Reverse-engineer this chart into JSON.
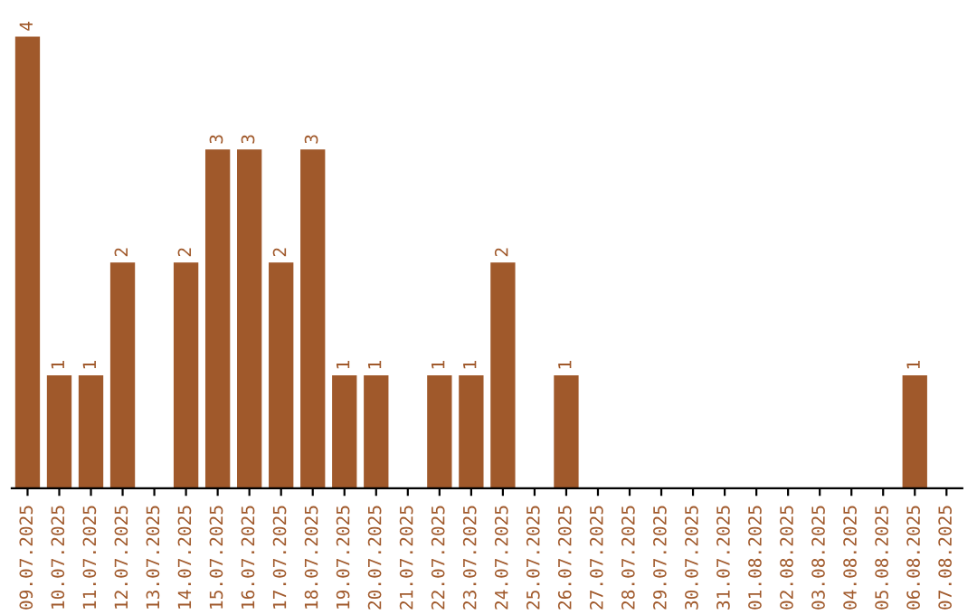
{
  "chart_data": {
    "type": "bar",
    "categories": [
      "09.07.2025",
      "10.07.2025",
      "11.07.2025",
      "12.07.2025",
      "13.07.2025",
      "14.07.2025",
      "15.07.2025",
      "16.07.2025",
      "17.07.2025",
      "18.07.2025",
      "19.07.2025",
      "20.07.2025",
      "21.07.2025",
      "22.07.2025",
      "23.07.2025",
      "24.07.2025",
      "25.07.2025",
      "26.07.2025",
      "27.07.2025",
      "28.07.2025",
      "29.07.2025",
      "30.07.2025",
      "31.07.2025",
      "01.08.2025",
      "02.08.2025",
      "03.08.2025",
      "04.08.2025",
      "05.08.2025",
      "06.08.2025",
      "07.08.2025"
    ],
    "values": [
      4,
      1,
      1,
      2,
      0,
      2,
      3,
      3,
      2,
      3,
      1,
      1,
      0,
      1,
      1,
      2,
      0,
      1,
      0,
      0,
      0,
      0,
      0,
      0,
      0,
      0,
      0,
      0,
      1,
      0
    ],
    "value_labels": [
      "4",
      "1",
      "1",
      "2",
      null,
      "2",
      "3",
      "3",
      "2",
      "3",
      "1",
      "1",
      null,
      "1",
      "1",
      "2",
      null,
      "1",
      null,
      null,
      null,
      null,
      null,
      null,
      null,
      null,
      null,
      null,
      "1",
      null
    ],
    "color": "#a0592b",
    "tick_labels": "x",
    "grid": false,
    "legend": false
  }
}
